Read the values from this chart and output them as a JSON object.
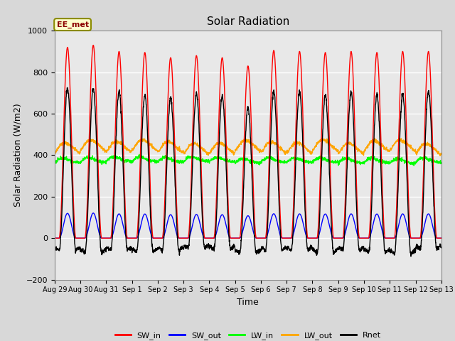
{
  "title": "Solar Radiation",
  "xlabel": "Time",
  "ylabel": "Solar Radiation (W/m2)",
  "ylim": [
    -200,
    1000
  ],
  "annotation": "EE_met",
  "x_tick_labels": [
    "Aug 29",
    "Aug 30",
    "Aug 31",
    "Sep 1",
    "Sep 2",
    "Sep 3",
    "Sep 4",
    "Sep 5",
    "Sep 6",
    "Sep 7",
    "Sep 8",
    "Sep 9",
    "Sep 10",
    "Sep 11",
    "Sep 12",
    "Sep 13"
  ],
  "series": {
    "SW_in": {
      "color": "#ff0000",
      "lw": 1.0
    },
    "SW_out": {
      "color": "#0000ff",
      "lw": 1.0
    },
    "LW_in": {
      "color": "#00ff00",
      "lw": 1.0
    },
    "LW_out": {
      "color": "#ffa500",
      "lw": 1.0
    },
    "Rnet": {
      "color": "#000000",
      "lw": 1.0
    }
  },
  "legend_ncol": 5,
  "bg_color": "#e8e8e8",
  "grid_color": "#ffffff",
  "num_days": 15,
  "pts_per_day": 144
}
